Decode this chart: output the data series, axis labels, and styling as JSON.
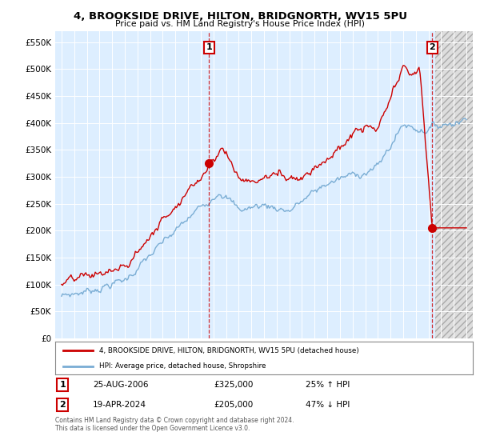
{
  "title": "4, BROOKSIDE DRIVE, HILTON, BRIDGNORTH, WV15 5PU",
  "subtitle": "Price paid vs. HM Land Registry's House Price Index (HPI)",
  "legend_line1": "4, BROOKSIDE DRIVE, HILTON, BRIDGNORTH, WV15 5PU (detached house)",
  "legend_line2": "HPI: Average price, detached house, Shropshire",
  "footer": "Contains HM Land Registry data © Crown copyright and database right 2024.\nThis data is licensed under the Open Government Licence v3.0.",
  "hpi_color": "#7aadd4",
  "price_color": "#cc0000",
  "annotation_color": "#cc0000",
  "background_color": "#ffffff",
  "plot_bg_color": "#ddeeff",
  "hatch_region_color": "#dddddd",
  "ylim": [
    0,
    570000
  ],
  "yticks": [
    0,
    50000,
    100000,
    150000,
    200000,
    250000,
    300000,
    350000,
    400000,
    450000,
    500000,
    550000
  ],
  "sale1_year": 2006.65,
  "sale1_y": 325000,
  "sale2_year": 2024.29,
  "sale2_y": 205000,
  "future_start": 2024.5,
  "xmin": 1994.5,
  "xmax": 2027.5
}
